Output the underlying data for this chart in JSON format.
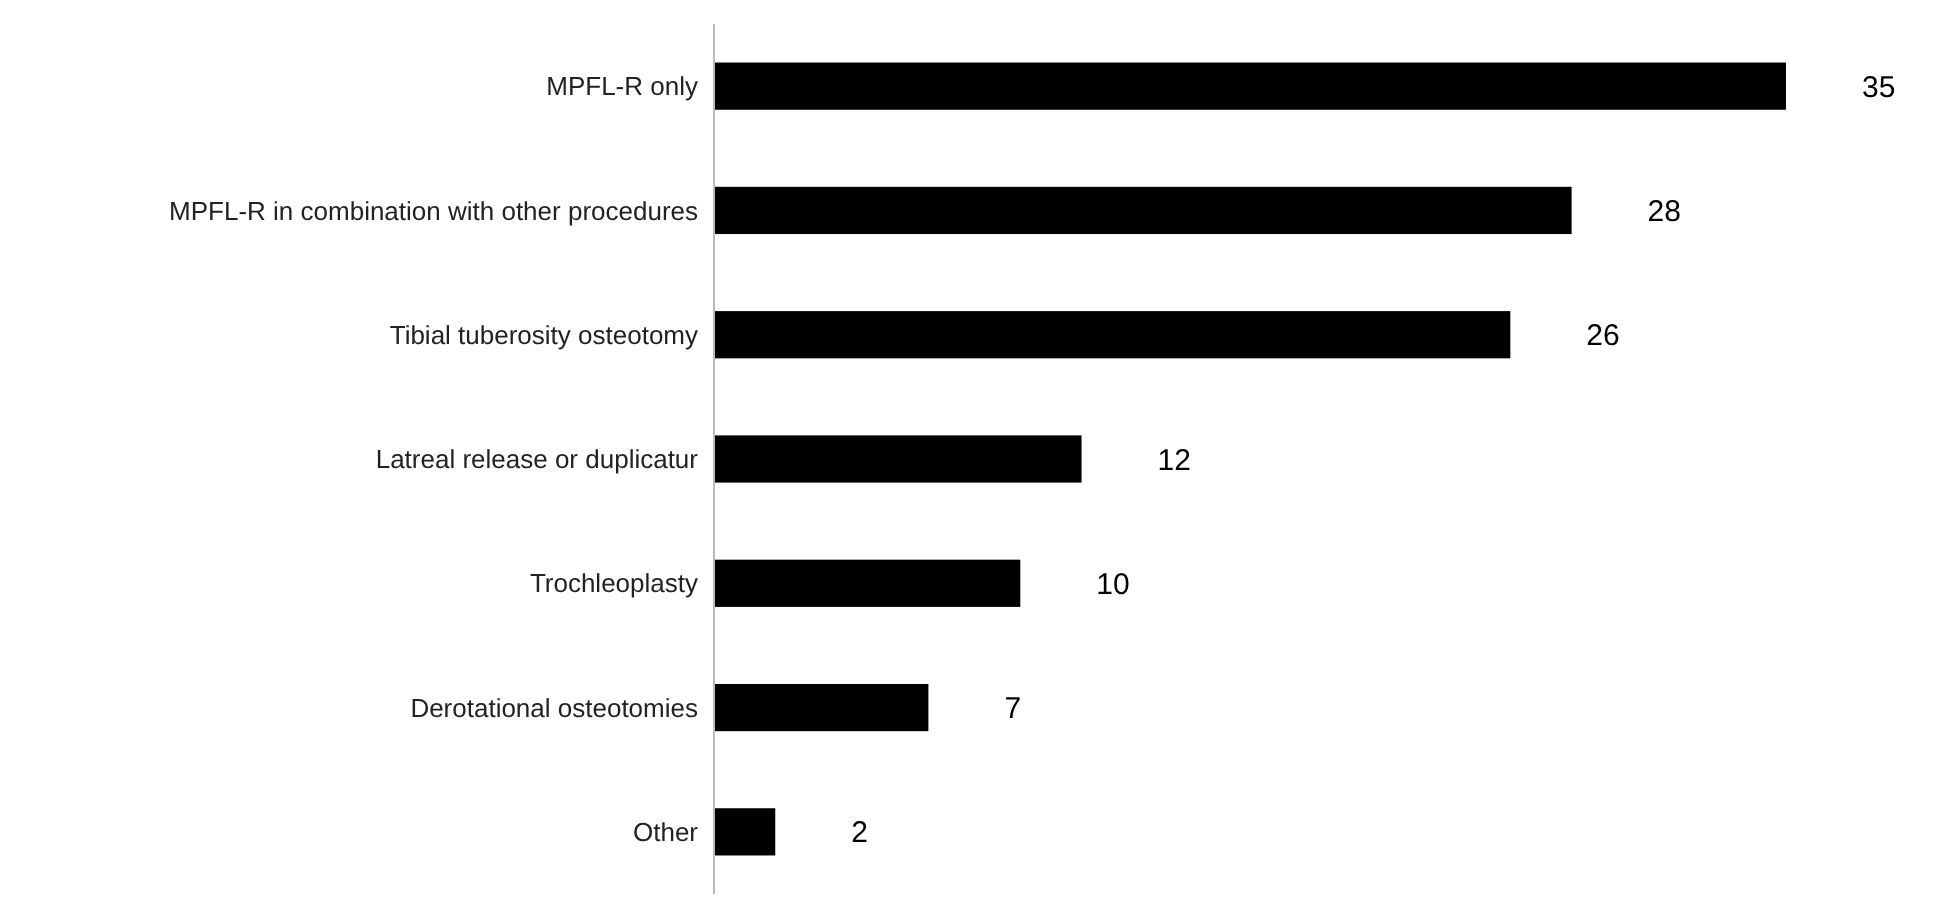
{
  "chart_data": {
    "type": "bar",
    "orientation": "horizontal",
    "categories": [
      "MPFL-R only",
      "MPFL-R in combination with other procedures",
      "Tibial tuberosity osteotomy",
      "Latreal release or duplicatur",
      "Trochleoplasty",
      "Derotational osteotomies",
      "Other"
    ],
    "values": [
      35,
      28,
      26,
      12,
      10,
      7,
      2
    ],
    "color": "#000000",
    "data_labels": true
  }
}
